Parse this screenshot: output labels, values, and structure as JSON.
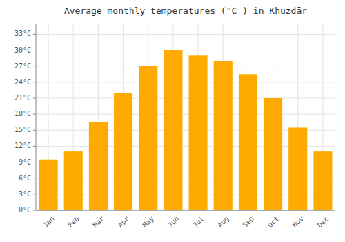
{
  "chart_data": {
    "type": "bar",
    "title": "Average monthly temperatures (°C ) in Khuzdār",
    "categories": [
      "Jan",
      "Feb",
      "Mar",
      "Apr",
      "May",
      "Jun",
      "Jul",
      "Aug",
      "Sep",
      "Oct",
      "Nov",
      "Dec"
    ],
    "values": [
      9.5,
      11.0,
      16.5,
      22.0,
      27.0,
      30.0,
      29.0,
      28.0,
      25.5,
      21.0,
      15.5,
      11.0
    ],
    "color": "#FFAA00",
    "ylim": [
      0,
      35
    ],
    "yticks": [
      {
        "value": 0,
        "label": "0°C"
      },
      {
        "value": 3,
        "label": "3°C"
      },
      {
        "value": 6,
        "label": "6°C"
      },
      {
        "value": 9,
        "label": "9°C"
      },
      {
        "value": 12,
        "label": "12°C"
      },
      {
        "value": 15,
        "label": "15°C"
      },
      {
        "value": 18,
        "label": "18°C"
      },
      {
        "value": 21,
        "label": "21°C"
      },
      {
        "value": 24,
        "label": "24°C"
      },
      {
        "value": 27,
        "label": "27°C"
      },
      {
        "value": 30,
        "label": "30°C"
      },
      {
        "value": 33,
        "label": "33°C"
      }
    ],
    "grid": true
  }
}
